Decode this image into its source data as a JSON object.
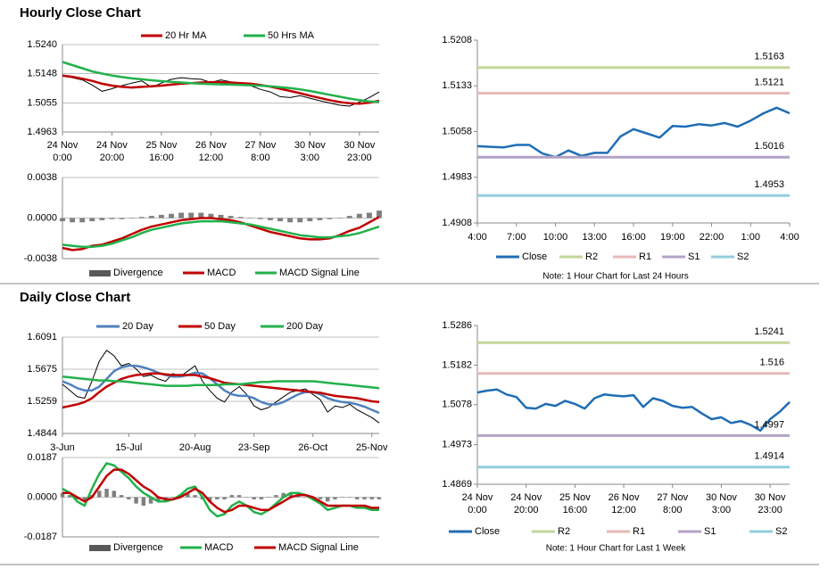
{
  "chart_data": [
    {
      "type": "line",
      "title": "Hourly Close Chart",
      "grid": true,
      "xlim": [
        0,
        32
      ],
      "xticks": [
        {
          "value": 0,
          "label": [
            "24 Nov",
            "0:00"
          ]
        },
        {
          "value": 5,
          "label": [
            "24 Nov",
            "20:00"
          ]
        },
        {
          "value": 10,
          "label": [
            "25 Nov",
            "16:00"
          ]
        },
        {
          "value": 15,
          "label": [
            "26 Nov",
            "12:00"
          ]
        },
        {
          "value": 20,
          "label": [
            "27 Nov",
            "8:00"
          ]
        },
        {
          "value": 25,
          "label": [
            "30 Nov",
            "3:00"
          ]
        },
        {
          "value": 30,
          "label": [
            "30 Nov",
            "23:00"
          ]
        }
      ],
      "ylim": [
        1.4963,
        1.524
      ],
      "yticks": [
        1.4963,
        1.5055,
        1.5148,
        {
          "value": 1.524,
          "label": "1.5240"
        }
      ],
      "series": [
        {
          "color": "#000000",
          "values": [
            1.514,
            1.5135,
            1.5128,
            1.5112,
            1.5092,
            1.51,
            1.511,
            1.5118,
            1.5125,
            1.5105,
            1.5118,
            1.513,
            1.5135,
            1.5132,
            1.513,
            1.512,
            1.5128,
            1.5122,
            1.5112,
            1.511,
            1.5098,
            1.509,
            1.5075,
            1.5072,
            1.5078,
            1.507,
            1.5062,
            1.5055,
            1.5048,
            1.5045,
            1.5058,
            1.5072,
            1.509
          ]
        },
        {
          "name": "20 Hr MA",
          "color": "#c00000",
          "values": [
            1.5142,
            1.5138,
            1.5132,
            1.5125,
            1.5116,
            1.511,
            1.5106,
            1.5104,
            1.5106,
            1.5108,
            1.511,
            1.5113,
            1.5116,
            1.5118,
            1.512,
            1.5121,
            1.5121,
            1.512,
            1.5118,
            1.5116,
            1.5112,
            1.5107,
            1.51,
            1.5093,
            1.5086,
            1.5078,
            1.5071,
            1.5064,
            1.5058,
            1.5054,
            1.5053,
            1.5056,
            1.5062
          ]
        },
        {
          "name": "50 Hrs MA",
          "color": "#22b14c",
          "values": [
            1.5185,
            1.5175,
            1.5165,
            1.5155,
            1.5148,
            1.5142,
            1.5137,
            1.5133,
            1.513,
            1.5127,
            1.5124,
            1.5122,
            1.512,
            1.5118,
            1.5116,
            1.5115,
            1.5114,
            1.5113,
            1.5112,
            1.5111,
            1.511,
            1.5108,
            1.5105,
            1.5102,
            1.5098,
            1.5093,
            1.5087,
            1.5081,
            1.5075,
            1.5069,
            1.5064,
            1.506,
            1.5058
          ]
        }
      ]
    },
    {
      "type": "line",
      "grid": true,
      "xlim": [
        0,
        32
      ],
      "ylim": [
        -0.0038,
        0.0038
      ],
      "yticks": [
        -0.0038,
        {
          "value": 0,
          "label": "0.0000"
        },
        0.0038
      ],
      "series": [
        {
          "name": "Divergence",
          "kind": "bar",
          "color": "#7f7f7f",
          "values": [
            -0.0003,
            -0.0004,
            -0.0004,
            -0.0003,
            -0.0002,
            -0.0001,
            -0.0001,
            0,
            0.0001,
            0.0002,
            0.0003,
            0.0004,
            0.0005,
            0.0005,
            0.0005,
            0.0004,
            0.0003,
            0.0002,
            0.0001,
            0,
            -0.0001,
            -0.0002,
            -0.0003,
            -0.0004,
            -0.0004,
            -0.0003,
            -0.0002,
            -0.0001,
            0,
            0.0002,
            0.0004,
            0.0005,
            0.0007
          ]
        },
        {
          "name": "MACD",
          "color": "#c00000",
          "values": [
            -0.0028,
            -0.003,
            -0.0029,
            -0.0026,
            -0.0025,
            -0.0022,
            -0.0019,
            -0.0015,
            -0.0011,
            -0.0008,
            -0.0006,
            -0.0004,
            -0.0002,
            -0.0001,
            0,
            0,
            -0.0001,
            -0.0002,
            -0.0004,
            -0.0007,
            -0.001,
            -0.0013,
            -0.0015,
            -0.0017,
            -0.0019,
            -0.002,
            -0.002,
            -0.0019,
            -0.0016,
            -0.0012,
            -0.0009,
            -0.0004,
            0.0001
          ]
        },
        {
          "name": "MACD Signal Line",
          "color": "#22b14c",
          "values": [
            -0.0025,
            -0.0026,
            -0.0027,
            -0.0027,
            -0.0026,
            -0.0024,
            -0.0021,
            -0.0018,
            -0.0014,
            -0.0011,
            -0.0009,
            -0.0007,
            -0.0005,
            -0.0004,
            -0.0003,
            -0.0003,
            -0.0003,
            -0.0004,
            -0.0005,
            -0.0006,
            -0.0008,
            -0.001,
            -0.0012,
            -0.0014,
            -0.0016,
            -0.0017,
            -0.0018,
            -0.0018,
            -0.0017,
            -0.0016,
            -0.0014,
            -0.0011,
            -0.0008
          ]
        }
      ]
    },
    {
      "type": "line",
      "grid": false,
      "note": "Note: 1 Hour Chart for Last 24 Hours",
      "xlim": [
        0,
        24
      ],
      "xticks": [
        {
          "value": 0,
          "label": "4:00"
        },
        {
          "value": 3,
          "label": "7:00"
        },
        {
          "value": 6,
          "label": "10:00"
        },
        {
          "value": 9,
          "label": "13:00"
        },
        {
          "value": 12,
          "label": "16:00"
        },
        {
          "value": 15,
          "label": "19:00"
        },
        {
          "value": 18,
          "label": "22:00"
        },
        {
          "value": 21,
          "label": "1:00"
        },
        {
          "value": 24,
          "label": "4:00"
        }
      ],
      "ylim": [
        1.4908,
        1.5208
      ],
      "yticks": [
        1.4908,
        1.4983,
        1.5058,
        1.5133,
        1.5208
      ],
      "series": [
        {
          "name": "Close",
          "color": "#1f6db5",
          "values": [
            1.5034,
            1.5033,
            1.5032,
            1.5036,
            1.5036,
            1.5022,
            1.5016,
            1.5027,
            1.5018,
            1.5023,
            1.5023,
            1.505,
            1.5062,
            1.5055,
            1.5048,
            1.5067,
            1.5066,
            1.507,
            1.5068,
            1.5072,
            1.5066,
            1.5076,
            1.5088,
            1.5097,
            1.5088
          ]
        },
        {
          "name": "R2",
          "kind": "level",
          "color": "#c3d69b",
          "values": [
            1.5163
          ]
        },
        {
          "name": "R1",
          "kind": "level",
          "color": "#e6b9b8",
          "values": [
            1.5121
          ]
        },
        {
          "name": "S1",
          "kind": "level",
          "color": "#b3a2c7",
          "values": [
            1.5016
          ]
        },
        {
          "name": "S2",
          "kind": "level",
          "color": "#93cddd",
          "values": [
            1.4953
          ]
        }
      ]
    },
    {
      "type": "line",
      "title": "Daily Close Chart",
      "grid": true,
      "xlim": [
        0,
        43
      ],
      "xticks": [
        {
          "value": 0,
          "label": "3-Jun"
        },
        {
          "value": 9,
          "label": "15-Jul"
        },
        {
          "value": 18,
          "label": "20-Aug"
        },
        {
          "value": 26,
          "label": "23-Sep"
        },
        {
          "value": 34,
          "label": "26-Oct"
        },
        {
          "value": 42,
          "label": "25-Nov"
        }
      ],
      "ylim": [
        1.4844,
        1.6091
      ],
      "yticks": [
        1.4844,
        1.5259,
        1.5675,
        1.6091
      ],
      "series": [
        {
          "color": "#000000",
          "values": [
            1.548,
            1.54,
            1.532,
            1.53,
            1.552,
            1.578,
            1.592,
            1.585,
            1.572,
            1.575,
            1.568,
            1.558,
            1.56,
            1.555,
            1.552,
            1.562,
            1.558,
            1.565,
            1.572,
            1.552,
            1.54,
            1.53,
            1.525,
            1.538,
            1.545,
            1.535,
            1.52,
            1.515,
            1.518,
            1.525,
            1.532,
            1.538,
            1.54,
            1.542,
            1.535,
            1.528,
            1.512,
            1.52,
            1.518,
            1.522,
            1.515,
            1.51,
            1.505,
            1.498
          ]
        },
        {
          "name": "20 Day",
          "color": "#4f81bd",
          "values": [
            1.552,
            1.548,
            1.543,
            1.54,
            1.54,
            1.545,
            1.555,
            1.565,
            1.57,
            1.572,
            1.572,
            1.57,
            1.567,
            1.563,
            1.56,
            1.558,
            1.558,
            1.56,
            1.563,
            1.562,
            1.556,
            1.548,
            1.54,
            1.535,
            1.533,
            1.533,
            1.53,
            1.525,
            1.522,
            1.522,
            1.525,
            1.53,
            1.535,
            1.538,
            1.538,
            1.535,
            1.53,
            1.527,
            1.525,
            1.524,
            1.522,
            1.519,
            1.515,
            1.511
          ]
        },
        {
          "name": "50 Day",
          "color": "#c00000",
          "values": [
            1.518,
            1.52,
            1.522,
            1.525,
            1.53,
            1.538,
            1.545,
            1.55,
            1.555,
            1.558,
            1.56,
            1.561,
            1.562,
            1.562,
            1.561,
            1.56,
            1.56,
            1.56,
            1.56,
            1.558,
            1.556,
            1.553,
            1.55,
            1.549,
            1.548,
            1.547,
            1.546,
            1.545,
            1.544,
            1.543,
            1.542,
            1.541,
            1.54,
            1.539,
            1.538,
            1.537,
            1.535,
            1.533,
            1.532,
            1.531,
            1.53,
            1.528,
            1.526,
            1.525
          ]
        },
        {
          "name": "200 Day",
          "color": "#22b14c",
          "values": [
            1.558,
            1.557,
            1.556,
            1.555,
            1.554,
            1.553,
            1.553,
            1.552,
            1.552,
            1.551,
            1.55,
            1.549,
            1.548,
            1.547,
            1.546,
            1.546,
            1.546,
            1.546,
            1.547,
            1.547,
            1.547,
            1.547,
            1.548,
            1.548,
            1.548,
            1.549,
            1.55,
            1.551,
            1.551,
            1.552,
            1.552,
            1.552,
            1.552,
            1.552,
            1.552,
            1.551,
            1.55,
            1.549,
            1.548,
            1.547,
            1.546,
            1.545,
            1.544,
            1.543
          ]
        }
      ]
    },
    {
      "type": "line",
      "grid": true,
      "xlim": [
        0,
        43
      ],
      "ylim": [
        -0.0187,
        0.0187
      ],
      "yticks": [
        -0.0187,
        {
          "value": 0,
          "label": "0.0000"
        },
        0.0187
      ],
      "series": [
        {
          "name": "Divergence",
          "kind": "bar",
          "color": "#7f7f7f",
          "values": [
            0.002,
            0.001,
            -0.001,
            -0.002,
            0.001,
            0.003,
            0.004,
            0.003,
            0.001,
            -0.001,
            -0.003,
            -0.004,
            -0.003,
            -0.002,
            -0.001,
            0,
            0.001,
            0.002,
            0.001,
            -0.001,
            -0.002,
            -0.001,
            -0.001,
            0.001,
            0.001,
            0,
            -0.001,
            -0.001,
            0,
            0.001,
            0.002,
            0.002,
            0.001,
            0,
            0,
            -0.001,
            -0.002,
            -0.001,
            0,
            0,
            -0.001,
            -0.001,
            -0.001,
            -0.001
          ]
        },
        {
          "name": "MACD",
          "color": "#22b14c",
          "values": [
            0.004,
            0.002,
            -0.002,
            -0.004,
            0.004,
            0.011,
            0.016,
            0.015,
            0.012,
            0.009,
            0.005,
            0.002,
            0,
            -0.002,
            -0.002,
            -0.001,
            0.001,
            0.004,
            0.005,
            0,
            -0.006,
            -0.009,
            -0.008,
            -0.004,
            -0.002,
            -0.004,
            -0.007,
            -0.008,
            -0.006,
            -0.003,
            0,
            0.002,
            0.002,
            0.001,
            -0.001,
            -0.003,
            -0.006,
            -0.005,
            -0.004,
            -0.004,
            -0.005,
            -0.005,
            -0.006,
            -0.006
          ]
        },
        {
          "name": "MACD Signal Line",
          "color": "#c00000",
          "values": [
            0.002,
            0.002,
            0,
            -0.002,
            0,
            0.005,
            0.01,
            0.013,
            0.013,
            0.011,
            0.008,
            0.005,
            0.003,
            0,
            -0.001,
            -0.001,
            0,
            0.002,
            0.004,
            0.002,
            -0.002,
            -0.005,
            -0.007,
            -0.006,
            -0.004,
            -0.004,
            -0.005,
            -0.006,
            -0.006,
            -0.004,
            -0.002,
            0,
            0.001,
            0.001,
            0,
            -0.002,
            -0.004,
            -0.004,
            -0.004,
            -0.004,
            -0.004,
            -0.004,
            -0.005,
            -0.005
          ]
        }
      ]
    },
    {
      "type": "line",
      "grid": false,
      "note": "Note: 1 Hour Chart for Last 1 Week",
      "xlim": [
        0,
        32
      ],
      "xticks": [
        {
          "value": 0,
          "label": [
            "24 Nov",
            "0:00"
          ]
        },
        {
          "value": 5,
          "label": [
            "24 Nov",
            "20:00"
          ]
        },
        {
          "value": 10,
          "label": [
            "25 Nov",
            "16:00"
          ]
        },
        {
          "value": 15,
          "label": [
            "26 Nov",
            "12:00"
          ]
        },
        {
          "value": 20,
          "label": [
            "27 Nov",
            "8:00"
          ]
        },
        {
          "value": 25,
          "label": [
            "30 Nov",
            "3:00"
          ]
        },
        {
          "value": 30,
          "label": [
            "30 Nov",
            "23:00"
          ]
        }
      ],
      "ylim": [
        1.4869,
        1.5286
      ],
      "yticks": [
        1.4869,
        1.4973,
        1.5078,
        1.5182,
        1.5286
      ],
      "series": [
        {
          "name": "Close",
          "color": "#1f6db5",
          "values": [
            1.511,
            1.5115,
            1.5118,
            1.5105,
            1.5098,
            1.507,
            1.5068,
            1.508,
            1.5075,
            1.5088,
            1.508,
            1.5068,
            1.5095,
            1.5105,
            1.5102,
            1.51,
            1.5103,
            1.5072,
            1.5095,
            1.5088,
            1.5075,
            1.507,
            1.5072,
            1.5055,
            1.504,
            1.5045,
            1.503,
            1.5035,
            1.5025,
            1.501,
            1.504,
            1.506,
            1.5085
          ]
        },
        {
          "name": "R2",
          "kind": "level",
          "color": "#c3d69b",
          "values": [
            1.5241
          ]
        },
        {
          "name": "R1",
          "kind": "level",
          "color": "#e6b9b8",
          "values": [
            1.516
          ]
        },
        {
          "name": "S1",
          "kind": "level",
          "color": "#b3a2c7",
          "values": [
            1.4997
          ]
        },
        {
          "name": "S2",
          "kind": "level",
          "color": "#93cddd",
          "values": [
            1.4914
          ]
        }
      ]
    }
  ]
}
